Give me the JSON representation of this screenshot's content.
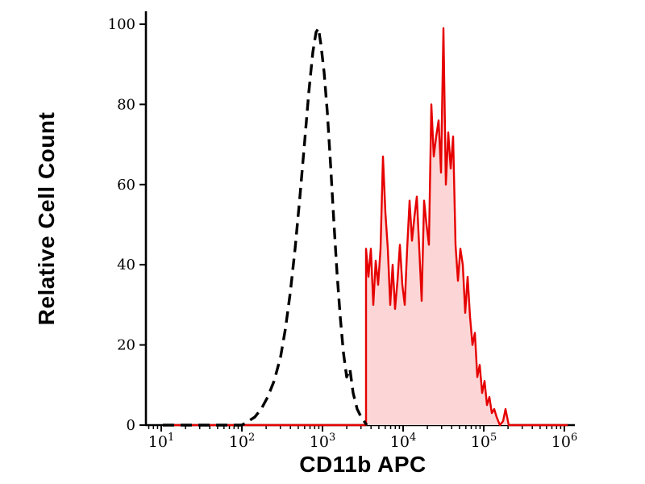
{
  "chart_data": {
    "type": "line",
    "subtype": "flow-cytometry-histogram",
    "title": "",
    "xlabel": "CD11b APC",
    "ylabel": "Relative Cell Count",
    "x_scale": "log10",
    "x_range_log10": [
      0.8,
      6.13
    ],
    "ylim": [
      0,
      100
    ],
    "grid": false,
    "legend": "none",
    "x_ticks": {
      "base": 10,
      "exponents": [
        1,
        2,
        3,
        4,
        5,
        6
      ]
    },
    "y_ticks": [
      0,
      20,
      40,
      60,
      80,
      100
    ],
    "colors": {
      "background": "#ffffff",
      "axis": "#000000",
      "stained_stroke": "#e60000",
      "stained_fill": "#fcd6d6",
      "control_stroke": "#000000"
    },
    "series": [
      {
        "name": "cd11b-apc-stained",
        "style": "solid",
        "color": "#e60000",
        "fill": "#fcd6d6",
        "points_log10x_y": [
          [
            1.02,
            0
          ],
          [
            3.54,
            0
          ],
          [
            3.54,
            44
          ],
          [
            3.57,
            37
          ],
          [
            3.6,
            44
          ],
          [
            3.63,
            30
          ],
          [
            3.66,
            41
          ],
          [
            3.69,
            35
          ],
          [
            3.72,
            44
          ],
          [
            3.75,
            67
          ],
          [
            3.78,
            53
          ],
          [
            3.81,
            44
          ],
          [
            3.84,
            30
          ],
          [
            3.87,
            40
          ],
          [
            3.9,
            29
          ],
          [
            3.93,
            36
          ],
          [
            3.96,
            45
          ],
          [
            3.99,
            35
          ],
          [
            4.02,
            30
          ],
          [
            4.05,
            44
          ],
          [
            4.08,
            56
          ],
          [
            4.11,
            46
          ],
          [
            4.14,
            52
          ],
          [
            4.17,
            57
          ],
          [
            4.2,
            44
          ],
          [
            4.23,
            31
          ],
          [
            4.26,
            56
          ],
          [
            4.29,
            50
          ],
          [
            4.32,
            45
          ],
          [
            4.35,
            80
          ],
          [
            4.38,
            67
          ],
          [
            4.41,
            72
          ],
          [
            4.44,
            76
          ],
          [
            4.47,
            63
          ],
          [
            4.5,
            99
          ],
          [
            4.53,
            60
          ],
          [
            4.56,
            73
          ],
          [
            4.59,
            64
          ],
          [
            4.62,
            72
          ],
          [
            4.65,
            45
          ],
          [
            4.68,
            36
          ],
          [
            4.71,
            44
          ],
          [
            4.74,
            40
          ],
          [
            4.77,
            28
          ],
          [
            4.8,
            37
          ],
          [
            4.83,
            27
          ],
          [
            4.86,
            20
          ],
          [
            4.89,
            23
          ],
          [
            4.92,
            12
          ],
          [
            4.95,
            15
          ],
          [
            4.98,
            8
          ],
          [
            5.01,
            11
          ],
          [
            5.04,
            5
          ],
          [
            5.07,
            7
          ],
          [
            5.1,
            3
          ],
          [
            5.13,
            4
          ],
          [
            5.16,
            2
          ],
          [
            5.2,
            0
          ],
          [
            5.24,
            1
          ],
          [
            5.27,
            4
          ],
          [
            5.31,
            0
          ],
          [
            6.04,
            0
          ]
        ]
      },
      {
        "name": "isotype-control",
        "style": "dashed",
        "color": "#000000",
        "fill": "none",
        "points_log10x_y": [
          [
            1.02,
            0
          ],
          [
            2.0,
            0
          ],
          [
            2.08,
            1
          ],
          [
            2.16,
            2
          ],
          [
            2.24,
            4
          ],
          [
            2.32,
            7
          ],
          [
            2.4,
            11
          ],
          [
            2.48,
            17
          ],
          [
            2.54,
            24
          ],
          [
            2.6,
            33
          ],
          [
            2.66,
            44
          ],
          [
            2.72,
            57
          ],
          [
            2.78,
            71
          ],
          [
            2.83,
            83
          ],
          [
            2.88,
            93
          ],
          [
            2.92,
            98
          ],
          [
            2.95,
            99
          ],
          [
            2.98,
            95
          ],
          [
            3.02,
            88
          ],
          [
            3.06,
            78
          ],
          [
            3.1,
            65
          ],
          [
            3.14,
            51
          ],
          [
            3.18,
            38
          ],
          [
            3.22,
            27
          ],
          [
            3.26,
            18
          ],
          [
            3.3,
            12
          ],
          [
            3.34,
            14
          ],
          [
            3.38,
            8
          ],
          [
            3.43,
            4
          ],
          [
            3.48,
            2
          ],
          [
            3.55,
            0
          ]
        ]
      }
    ]
  }
}
